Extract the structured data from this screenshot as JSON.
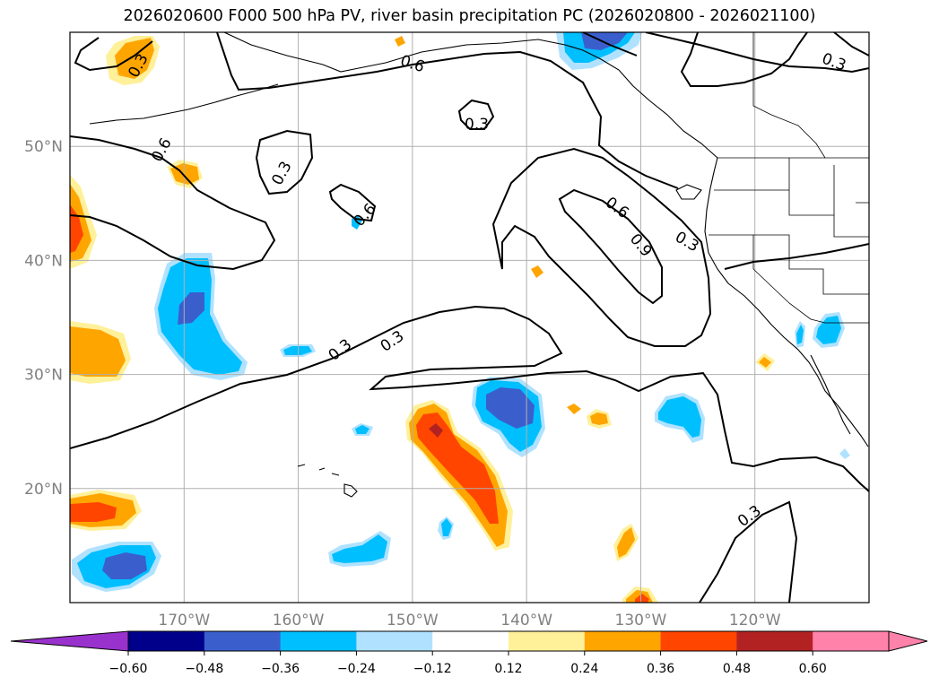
{
  "title": "2026020600 F000 500 hPa PV, river basin precipitation PC (2026020800 - 2026021100)",
  "map": {
    "lon_range": [
      -180,
      -110
    ],
    "lat_range": [
      10,
      60
    ],
    "lon_ticks": [
      {
        "lon": -170,
        "label": "170°W"
      },
      {
        "lon": -160,
        "label": "160°W"
      },
      {
        "lon": -150,
        "label": "150°W"
      },
      {
        "lon": -140,
        "label": "140°W"
      },
      {
        "lon": -130,
        "label": "130°W"
      },
      {
        "lon": -120,
        "label": "120°W"
      }
    ],
    "lat_ticks": [
      {
        "lat": 50,
        "label": "50°N"
      },
      {
        "lat": 40,
        "label": "40°N"
      },
      {
        "lat": 30,
        "label": "30°N"
      },
      {
        "lat": 20,
        "label": "20°N"
      }
    ],
    "grid": true,
    "contour_labels": [
      "0.3",
      "0.6",
      "0.9"
    ]
  },
  "colorbar": {
    "colors": [
      "#9932cc",
      "#00008b",
      "#3a5fcd",
      "#00bfff",
      "#b0e2ff",
      "#ffffff",
      "#fff09a",
      "#ffa500",
      "#ff4500",
      "#b22222",
      "#ff82ab",
      "#ff82ab"
    ],
    "tick_labels": [
      "−0.60",
      "−0.48",
      "−0.36",
      "−0.24",
      "−0.12",
      "0.12",
      "0.24",
      "0.36",
      "0.48",
      "0.60"
    ]
  }
}
